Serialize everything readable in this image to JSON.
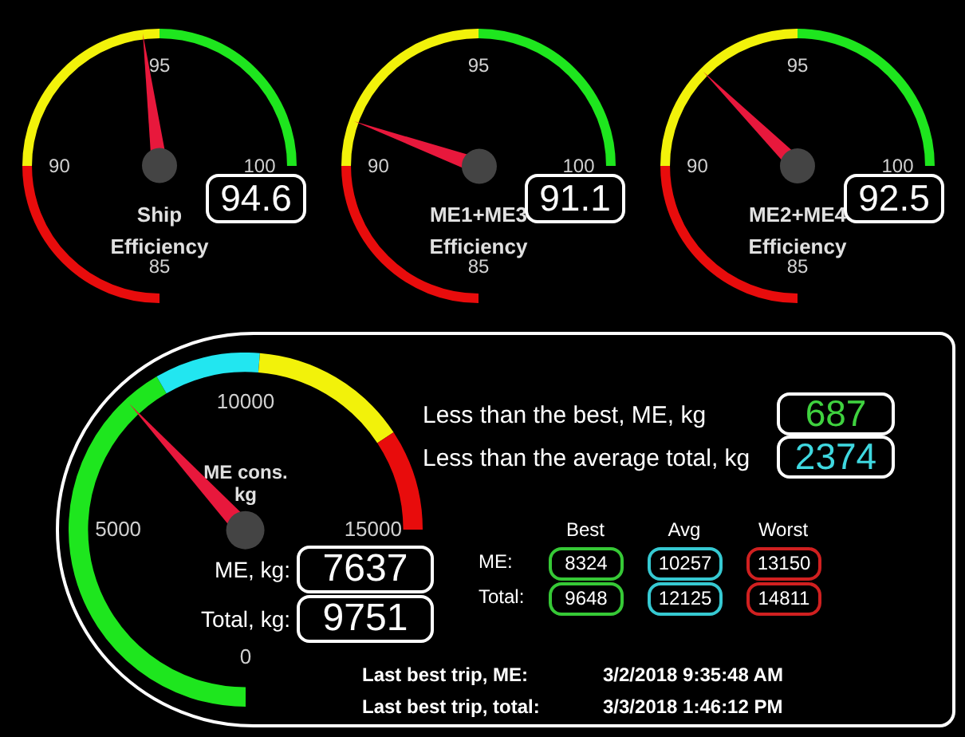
{
  "chart_data": [
    {
      "type": "other",
      "title": "Ship\nEfficiency",
      "values": [
        94.6
      ],
      "data_labels": true,
      "bands": [
        {
          "axis": "y",
          "color": "#e80c0c"
        },
        {
          "axis": "y",
          "color": "#f2f20a"
        },
        {
          "axis": "y",
          "color": "#1ee61e"
        }
      ],
      "annotations": [
        "85",
        "90",
        "95",
        "100"
      ]
    },
    {
      "type": "other",
      "title": "ME1+ME3\nEfficiency",
      "values": [
        91.1
      ],
      "data_labels": true,
      "bands": [
        {
          "axis": "y",
          "color": "#e80c0c"
        },
        {
          "axis": "y",
          "color": "#f2f20a"
        },
        {
          "axis": "y",
          "color": "#1ee61e"
        }
      ],
      "annotations": [
        "85",
        "90",
        "95",
        "100"
      ]
    },
    {
      "type": "other",
      "title": "ME2+ME4\nEfficiency",
      "values": [
        92.5
      ],
      "data_labels": true,
      "bands": [
        {
          "axis": "y",
          "color": "#e80c0c"
        },
        {
          "axis": "y",
          "color": "#f2f20a"
        },
        {
          "axis": "y",
          "color": "#1ee61e"
        }
      ],
      "annotations": [
        "85",
        "90",
        "95",
        "100"
      ]
    },
    {
      "type": "other",
      "title": "ME cons.\nkg",
      "data_labels": true,
      "series": [
        {
          "name": "ME, kg:",
          "values": [
            7637
          ]
        },
        {
          "name": "Total, kg:",
          "values": [
            9751
          ]
        }
      ],
      "bands": [
        {
          "axis": "y",
          "color": "#1ee61e"
        },
        {
          "axis": "y",
          "color": "#22e6f0"
        },
        {
          "axis": "y",
          "color": "#f2f20a"
        },
        {
          "axis": "y",
          "color": "#e80c0c"
        }
      ],
      "annotations": [
        "0",
        "5000",
        "10000",
        "15000"
      ]
    },
    {
      "type": "other",
      "annotations": [
        "Less than the best, ME, kg",
        "687",
        "Less than the average total, kg",
        "2374",
        "Best",
        "Avg",
        "Worst",
        "ME:",
        "8324",
        "10257",
        "13150",
        "Total:",
        "9648",
        "12125",
        "14811",
        "Last best trip, ME:",
        "3/2/2018 9:35:48 AM",
        "Last best trip, total:",
        "3/3/2018 1:46:12 PM"
      ]
    }
  ]
}
